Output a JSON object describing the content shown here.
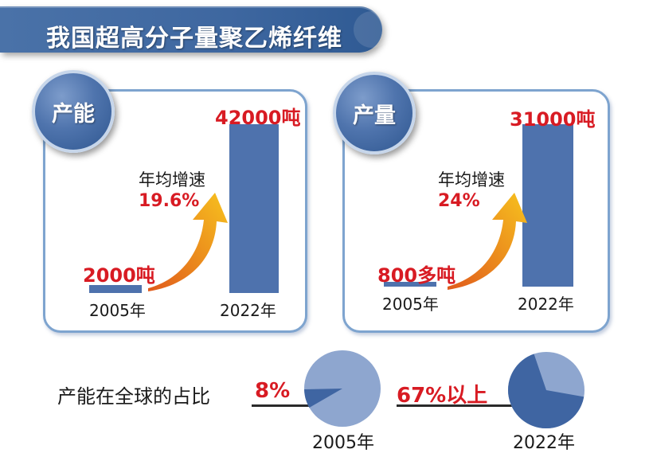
{
  "title": "我国超高分子量聚乙烯纤维",
  "colors": {
    "banner": "#3e67a0",
    "bar": "#4e72ad",
    "accent_red": "#d81b23",
    "panel_border": "#7ea4cf",
    "arrow_start": "#f4b11c",
    "arrow_end": "#e05a1c",
    "pie_light": "#8ea6cf",
    "pie_dark": "#3f65a2"
  },
  "chart_data": [
    {
      "type": "bar",
      "badge": "产能",
      "categories": [
        "2005年",
        "2022年"
      ],
      "values": [
        2000,
        42000
      ],
      "value_labels": [
        "2000吨",
        "42000吨"
      ],
      "growth_label": "年均增速",
      "growth_value": "19.6%"
    },
    {
      "type": "bar",
      "badge": "产量",
      "categories": [
        "2005年",
        "2022年"
      ],
      "values": [
        800,
        31000
      ],
      "value_labels": [
        "800多吨",
        "31000吨"
      ],
      "growth_label": "年均增速",
      "growth_value": "24%"
    },
    {
      "type": "pie",
      "caption": "产能在全球的占比",
      "categories": [
        "2005年",
        "2022年"
      ],
      "values": [
        8,
        67
      ],
      "value_labels": [
        "8%",
        "67%以上"
      ]
    }
  ]
}
